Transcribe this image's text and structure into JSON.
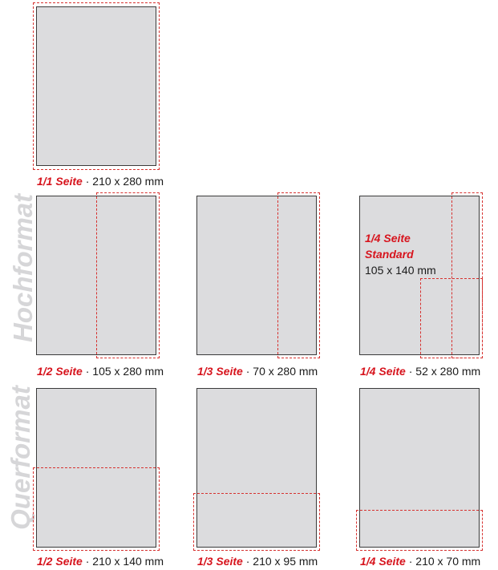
{
  "sections": {
    "portrait": "Hochformat",
    "landscape": "Querformat"
  },
  "formats": {
    "full": {
      "label": "1/1 Seite",
      "dims": "210 x 280 mm"
    },
    "half_portrait": {
      "label": "1/2 Seite",
      "dims": "105 x 280 mm"
    },
    "third_portrait": {
      "label": "1/3 Seite",
      "dims": "70 x 280 mm"
    },
    "quarter_portrait": {
      "label": "1/4 Seite",
      "dims": "52 x 280 mm"
    },
    "quarter_standard": {
      "label_line1": "1/4 Seite",
      "label_line2": "Standard",
      "dims": "105 x 140 mm"
    },
    "half_landscape": {
      "label": "1/2 Seite",
      "dims": "210 x 140 mm"
    },
    "third_landscape": {
      "label": "1/3 Seite",
      "dims": "210 x 95 mm"
    },
    "quarter_landscape": {
      "label": "1/4 Seite",
      "dims": "210 x 70 mm"
    }
  },
  "separator": " · ",
  "colors": {
    "label_red": "#d7151e",
    "dash_red": "#d6312f",
    "page_fill": "#dcdcde",
    "side_label": "#d6d6d8"
  }
}
